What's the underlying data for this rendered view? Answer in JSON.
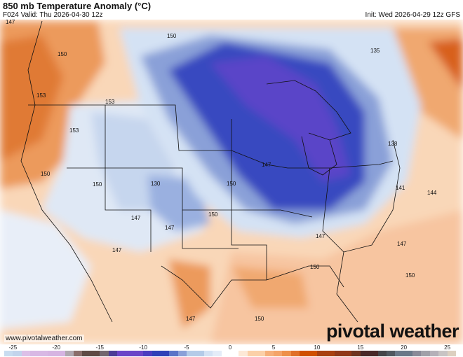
{
  "header": {
    "title": "850 mb Temperature Anomaly (°C)",
    "valid": "F024 Valid: Thu 2026-04-30 12z",
    "init": "Init: Wed 2026-04-29 12z GFS"
  },
  "footer": {
    "website": "www.pivotalweather.com",
    "logo": "pivotal weather"
  },
  "colorbar": {
    "min": -26,
    "max": 26,
    "ticks": [
      "-25",
      "-20",
      "-15",
      "-10",
      "-5",
      "0",
      "5",
      "10",
      "15",
      "20",
      "25"
    ],
    "tick_values": [
      -25,
      -20,
      -15,
      -10,
      -5,
      0,
      5,
      10,
      15,
      20,
      25
    ],
    "colors": [
      "#c8dcf0",
      "#c2d4ec",
      "#dcc0e8",
      "#d8b8e4",
      "#d8b8e4",
      "#d6b4e2",
      "#d6b4e2",
      "#b0a8b0",
      "#8a6e6a",
      "#5e4a44",
      "#5e4a44",
      "#72666e",
      "#4a3c96",
      "#6a44c8",
      "#6a44c8",
      "#6a44c8",
      "#4a3cc0",
      "#2e40b8",
      "#2e40b8",
      "#5a74c8",
      "#8aa0d8",
      "#b4cbe8",
      "#b4cbe8",
      "#d4e2f4",
      "#e4ecf8",
      "#ffffff",
      "#ffffff",
      "#fde8d6",
      "#fbd0a8",
      "#fbd0a8",
      "#f6b07a",
      "#f4a468",
      "#ee9048",
      "#e07028",
      "#d05000",
      "#d05000",
      "#a84010",
      "#a84010",
      "#903818",
      "#903818",
      "#6e3420",
      "#482828",
      "#482828",
      "#444448",
      "#505860",
      "#6a7888",
      "#6a7888",
      "#8a8a98",
      "#a0a0a8",
      "#b4b0b8",
      "#c8c4c4",
      "#dcd0c0"
    ]
  },
  "map": {
    "colors": {
      "warm": "#f7c9a0",
      "warm_strong": "#e8843c",
      "cold": "#3848c0",
      "cold_core": "#6a44c8",
      "cold_light": "#b4cbe8",
      "neutral": "#eef2f8"
    },
    "height_labels": [
      "147",
      "150",
      "153",
      "153",
      "153",
      "150",
      "150",
      "130",
      "150",
      "147",
      "135",
      "138",
      "141",
      "144",
      "147",
      "147",
      "150",
      "147",
      "147",
      "147",
      "150",
      "150",
      "150",
      "147",
      "150"
    ]
  }
}
